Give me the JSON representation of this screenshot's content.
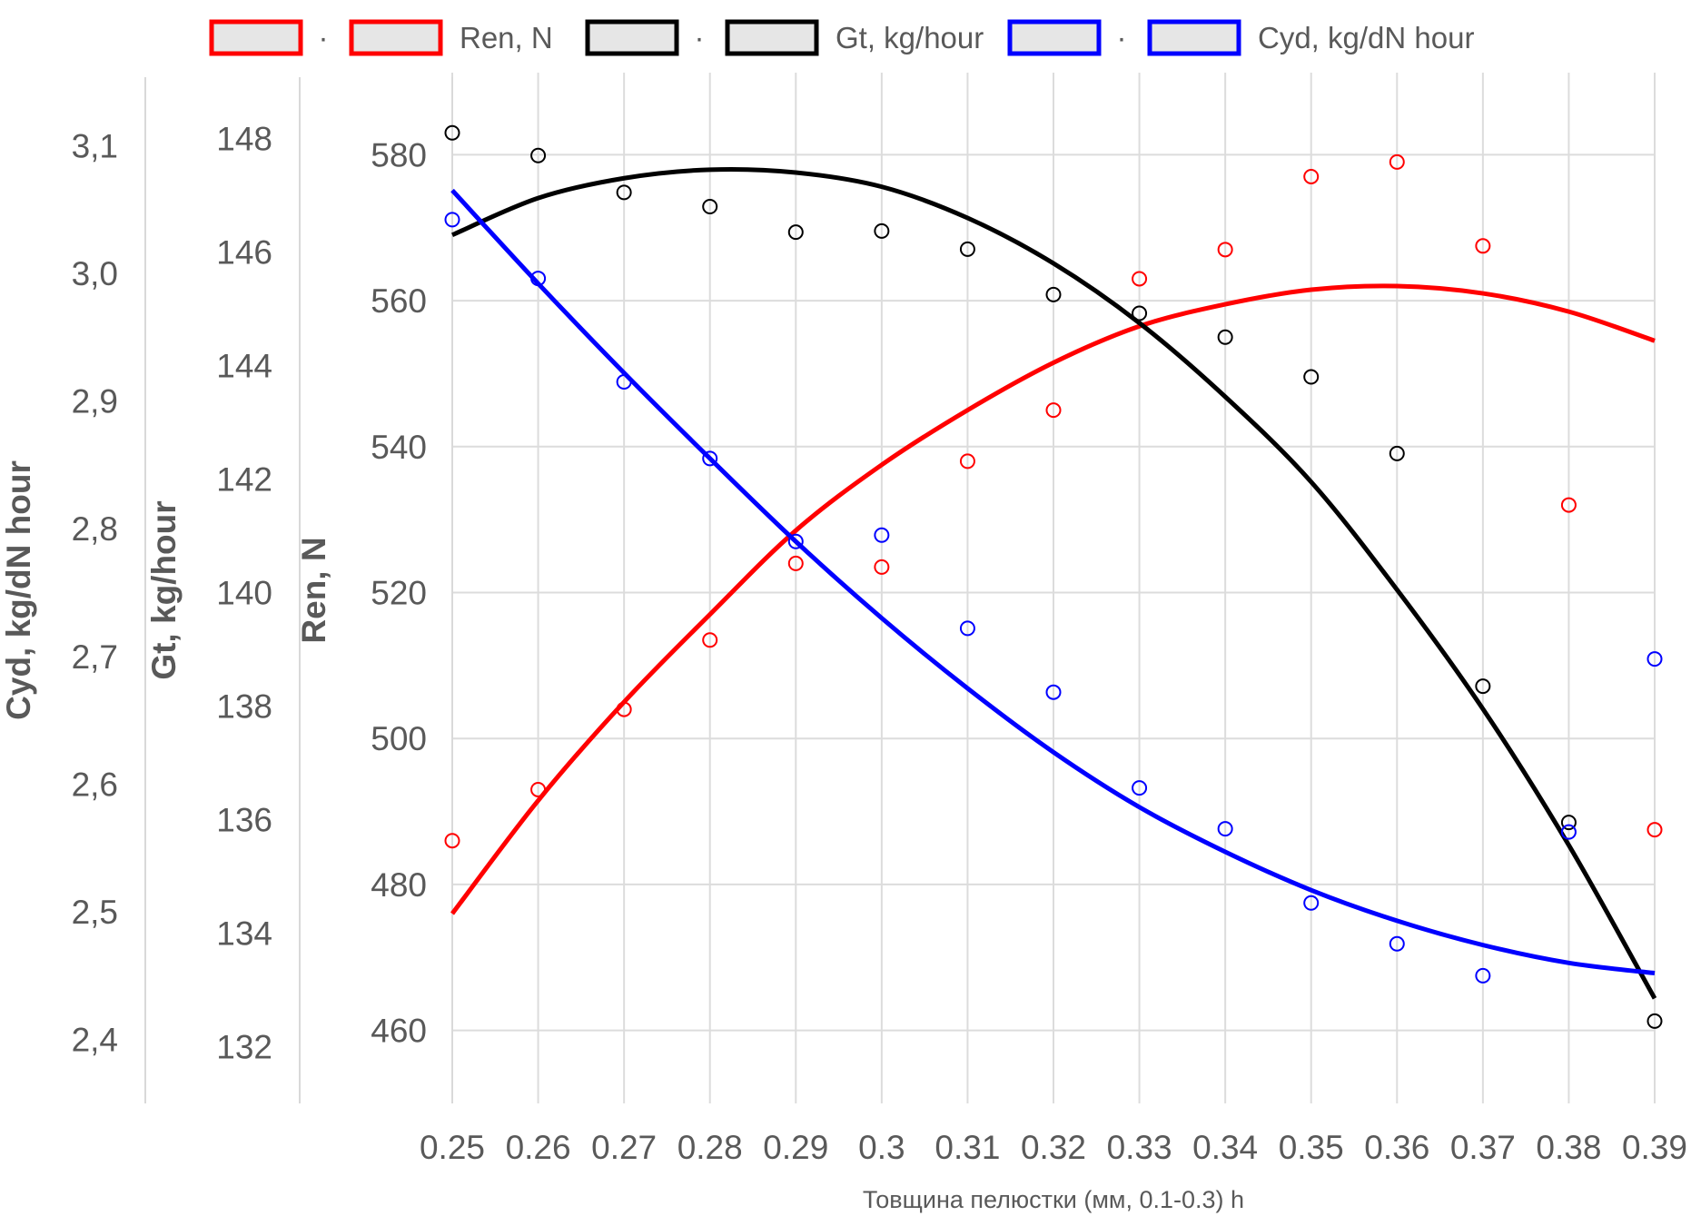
{
  "chart_data": {
    "type": "line",
    "xlabel": "Товщина пелюстки (мм, 0.1-0.3) h",
    "x": [
      0.25,
      0.26,
      0.27,
      0.28,
      0.29,
      0.3,
      0.31,
      0.32,
      0.33,
      0.34,
      0.35,
      0.36,
      0.37,
      0.38,
      0.39
    ],
    "x_tick_labels": [
      "0.25",
      "0.26",
      "0.27",
      "0.28",
      "0.29",
      "0.3",
      "0.31",
      "0.32",
      "0.33",
      "0.34",
      "0.35",
      "0.36",
      "0.37",
      "0.38",
      "0.39"
    ],
    "grid": true,
    "legend_position": "top",
    "axes": [
      {
        "id": "ren",
        "title": "Ren, N",
        "range": [
          450,
          590
        ],
        "ticks": [
          460,
          480,
          500,
          520,
          540,
          560,
          580
        ],
        "tick_labels": [
          "460",
          "480",
          "500",
          "520",
          "540",
          "560",
          "580"
        ]
      },
      {
        "id": "gt",
        "title": "Gt, kg/hour",
        "range": [
          131,
          149
        ],
        "ticks": [
          132,
          134,
          136,
          138,
          140,
          142,
          144,
          146,
          148
        ],
        "tick_labels": [
          "132",
          "134",
          "136",
          "138",
          "140",
          "142",
          "144",
          "146",
          "148"
        ]
      },
      {
        "id": "cyd",
        "title": "Cyd, kg/dN hour",
        "range": [
          2.35,
          3.15
        ],
        "ticks": [
          2.4,
          2.5,
          2.6,
          2.7,
          2.8,
          2.9,
          3.0,
          3.1
        ],
        "tick_labels": [
          "2,4",
          "2,5",
          "2,6",
          "2,7",
          "2,8",
          "2,9",
          "3,0",
          "3,1"
        ]
      }
    ],
    "series": [
      {
        "name": "Ren, N",
        "axis": "ren",
        "color": "#ff0000",
        "points": [
          486,
          493,
          504,
          513.5,
          524,
          523.5,
          538,
          545,
          563,
          567,
          577,
          579,
          567.5,
          532,
          487.5
        ],
        "fit": [
          476,
          491.5,
          505,
          517,
          528.5,
          537.5,
          545,
          551.5,
          556.5,
          559.5,
          561.5,
          562,
          561,
          558.5,
          554.5
        ]
      },
      {
        "name": "Gt, kg/hour",
        "axis": "gt",
        "color": "#000000",
        "points": [
          148.1,
          147.7,
          147.05,
          146.8,
          146.35,
          146.37,
          146.05,
          145.25,
          144.92,
          144.5,
          143.8,
          142.45,
          138.35,
          135.95,
          132.45
        ],
        "fit": [
          146.3,
          146.95,
          147.3,
          147.45,
          147.4,
          147.15,
          146.6,
          145.8,
          144.75,
          143.45,
          141.95,
          140.05,
          137.95,
          135.55,
          132.85
        ]
      },
      {
        "name": "Cyd, kg/dN hour",
        "axis": "cyd",
        "color": "#0000ff",
        "points": [
          3.042,
          2.996,
          2.915,
          2.855,
          2.79,
          2.795,
          2.722,
          2.672,
          2.597,
          2.565,
          2.507,
          2.475,
          2.45,
          2.5625,
          2.698
        ],
        "fit": [
          3.065,
          2.992,
          2.922,
          2.855,
          2.79,
          2.73,
          2.675,
          2.625,
          2.582,
          2.547,
          2.517,
          2.493,
          2.474,
          2.46,
          2.452
        ]
      }
    ]
  },
  "legend": {
    "separator": "·"
  }
}
